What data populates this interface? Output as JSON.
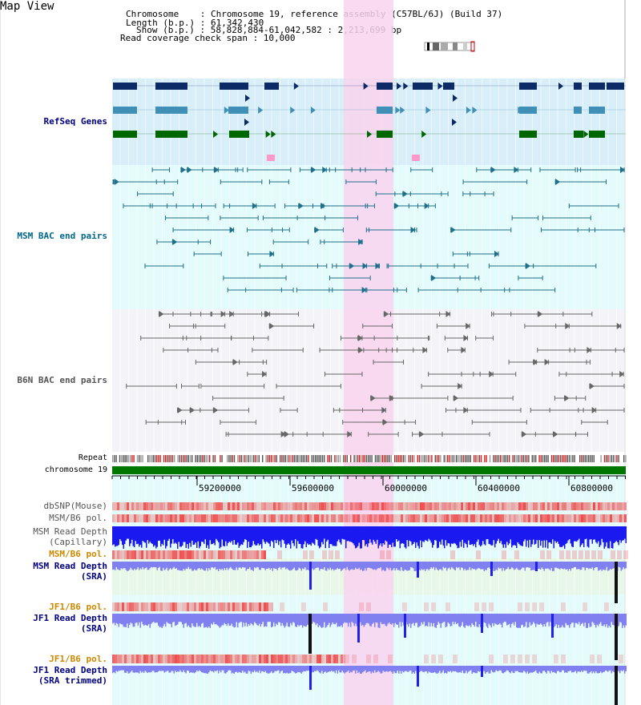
{
  "view": {
    "title": "Map View",
    "chromosome_line": "Chromosome    : Chromosome 19, reference assembly (C57BL/6J) (Build 37)",
    "length_line": "Length (b.p.) : 61,342,430",
    "show_line": "Show (b.p.) : 58,828,884-61,042,582 : 2,213,699 bp",
    "read_span_line": "Read coverage check span : 10,000"
  },
  "tracks": {
    "refseq": "RefSeq Genes",
    "msm_bac": "MSM BAC end pairs",
    "b6n_bac": "B6N BAC end pairs",
    "repeat": "Repeat",
    "chromosome": "chromosome 19",
    "dbsnp": "dbSNP(Mouse)",
    "msm_b6_pol_1": "MSM/B6 pol.",
    "msm_depth_cap_1": "MSM Read Depth",
    "msm_depth_cap_2": "(Capillary)",
    "msm_b6_pol_2": "MSM/B6 pol.",
    "msm_depth_sra_1": "MSM Read Depth",
    "msm_depth_sra_2": "(SRA)",
    "jf1_b6_pol_1": "JF1/B6 pol.",
    "jf1_depth_sra_1": "JF1 Read Depth",
    "jf1_depth_sra_2": "(SRA)",
    "jf1_b6_pol_2": "JF1/B6 pol.",
    "jf1_depth_trim_1": "JF1 Read Depth",
    "jf1_depth_trim_2": "(SRA trimmed)"
  },
  "axis": {
    "ticks": [
      "59200000",
      "59600000",
      "60000000",
      "60400000",
      "60800000"
    ]
  },
  "colors": {
    "refseq_bg": "#d8eef9",
    "bac_bg": "#e4fbfb",
    "highlight": "#f8d3ef",
    "refseq_dark": "#0b2a66",
    "refseq_mid": "#3f8fb6",
    "refseq_green": "#006600",
    "msm_line": "#1f6f8a",
    "b6n_line": "#666666",
    "chrom_green": "#007700",
    "depth_blue": "#1a1af0",
    "depth_light": "#8080f0",
    "pol_red": "#ee4444",
    "label_blue": "#000080",
    "label_teal": "#006688",
    "label_orange": "#cc8800"
  }
}
